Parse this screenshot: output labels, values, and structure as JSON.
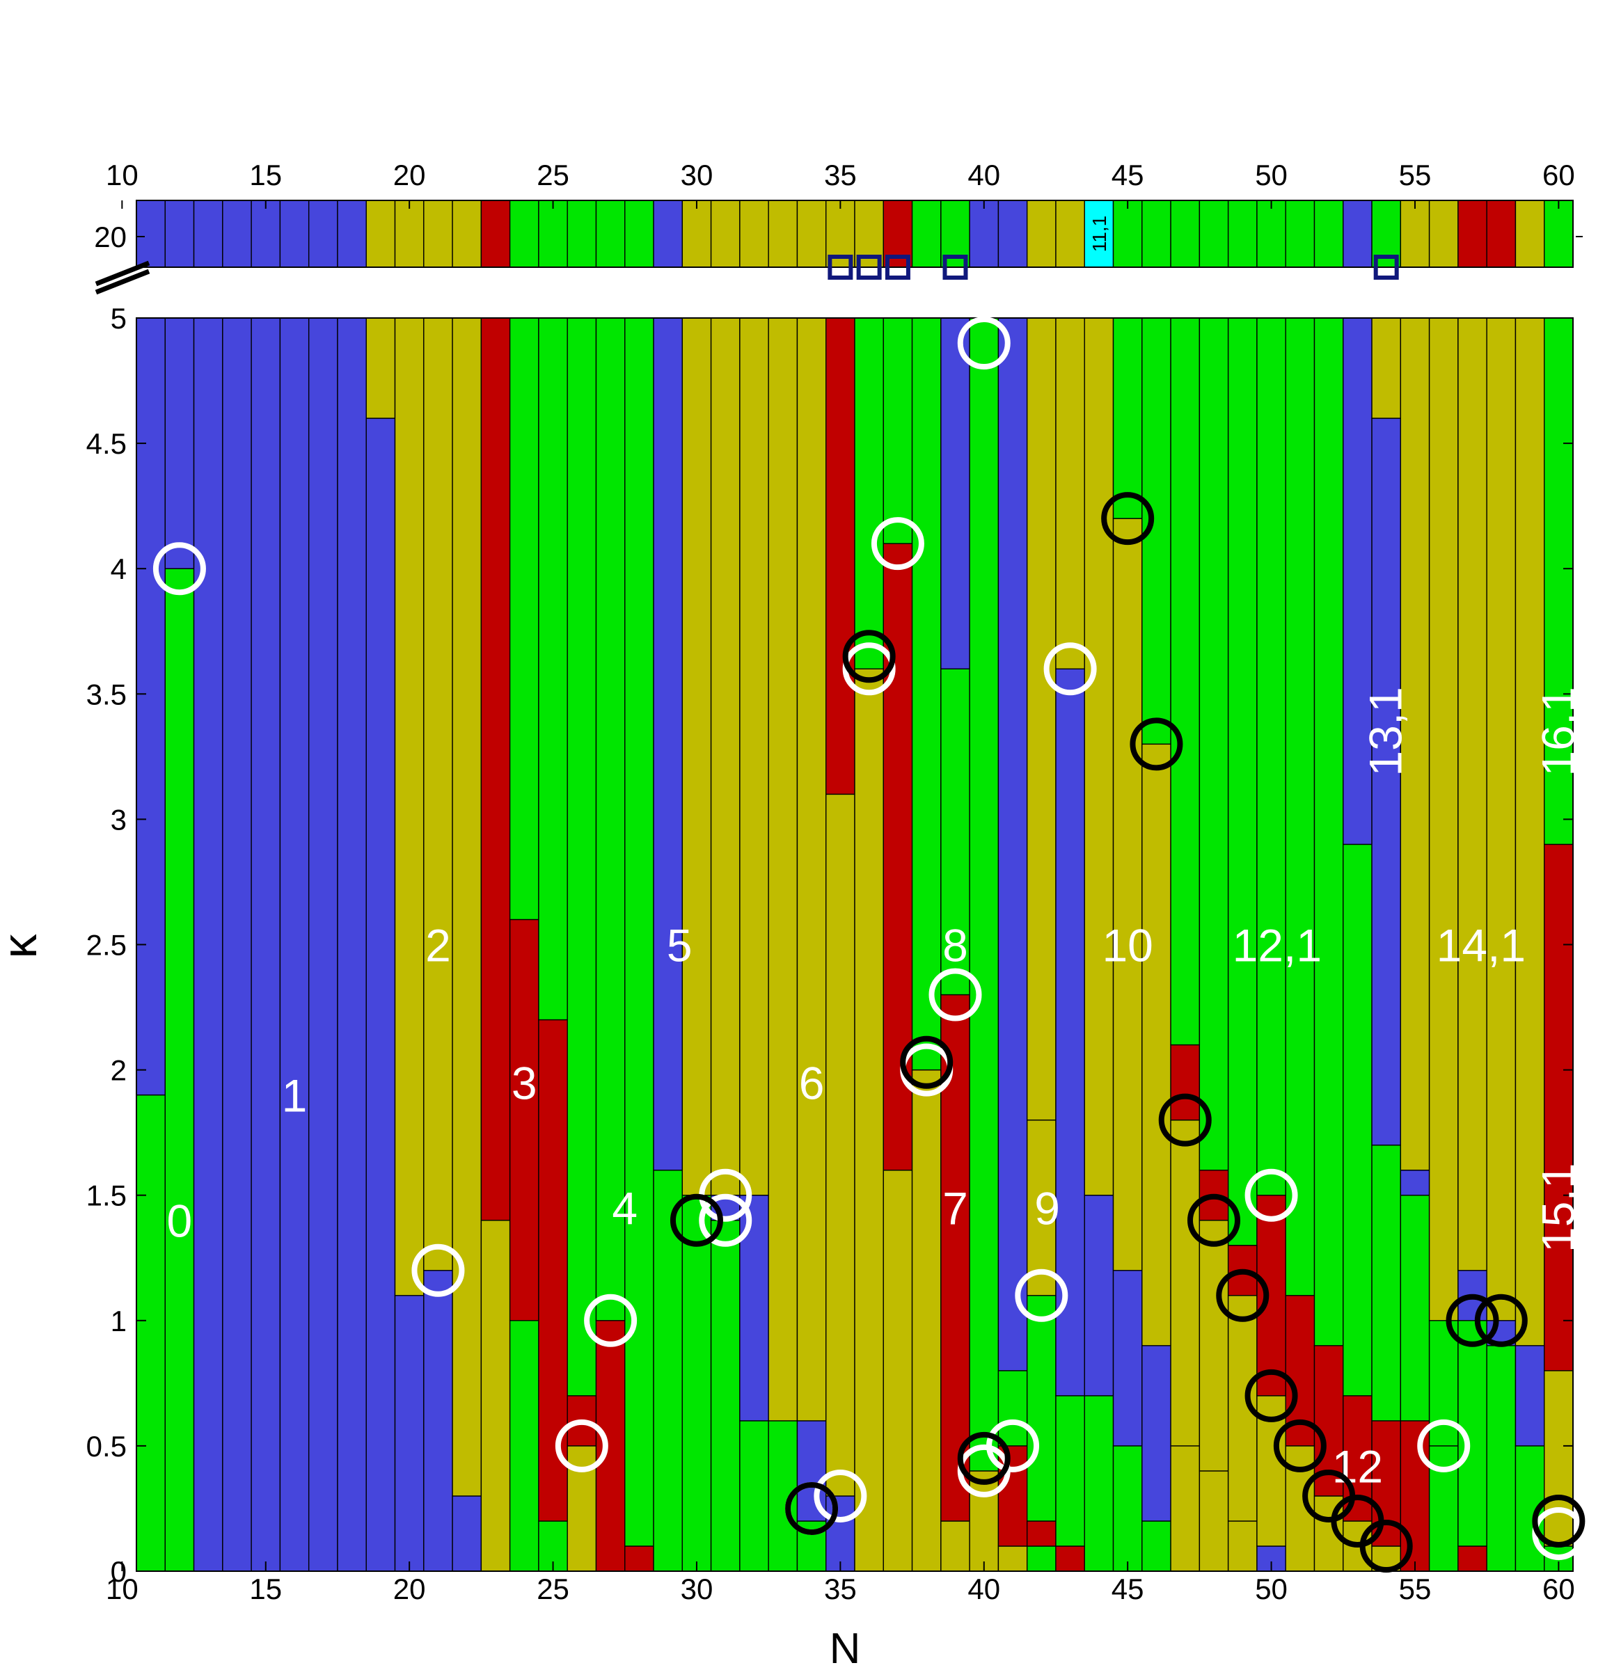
{
  "colors": {
    "blue": "#4646dc",
    "yellow": "#c0bc00",
    "red": "#c00000",
    "green": "#00e600",
    "cyan": "#00ffff",
    "square_outline": "#10187c"
  },
  "chart_data": {
    "type": "heatmap",
    "title": "",
    "xlabel": "N",
    "ylabel": "κ",
    "x_ticks": [
      "10",
      "15",
      "20",
      "25",
      "30",
      "35",
      "40",
      "45",
      "50",
      "55",
      "60"
    ],
    "y_ticks": [
      "0",
      "0.5",
      "1",
      "1.5",
      "2",
      "2.5",
      "3",
      "3.5",
      "4",
      "4.5",
      "5"
    ],
    "top_tick": "20",
    "xlim": [
      10.5,
      60.5
    ],
    "ylim": [
      0,
      5
    ],
    "columns": [
      {
        "N": 11,
        "segs": [
          [
            0,
            1.9,
            "green"
          ],
          [
            1.9,
            5,
            "blue"
          ]
        ],
        "top": "blue"
      },
      {
        "N": 12,
        "segs": [
          [
            0,
            4.0,
            "green"
          ],
          [
            4.0,
            5,
            "blue"
          ]
        ],
        "top": "blue"
      },
      {
        "N": 13,
        "segs": [
          [
            0,
            5,
            "blue"
          ]
        ],
        "top": "blue"
      },
      {
        "N": 14,
        "segs": [
          [
            0,
            5,
            "blue"
          ]
        ],
        "top": "blue"
      },
      {
        "N": 15,
        "segs": [
          [
            0,
            5,
            "blue"
          ]
        ],
        "top": "blue"
      },
      {
        "N": 16,
        "segs": [
          [
            0,
            5,
            "blue"
          ]
        ],
        "top": "blue"
      },
      {
        "N": 17,
        "segs": [
          [
            0,
            5,
            "blue"
          ]
        ],
        "top": "blue"
      },
      {
        "N": 18,
        "segs": [
          [
            0,
            5,
            "blue"
          ]
        ],
        "top": "blue"
      },
      {
        "N": 19,
        "segs": [
          [
            0,
            4.6,
            "blue"
          ],
          [
            4.6,
            5,
            "yellow"
          ]
        ],
        "top": "yellow"
      },
      {
        "N": 20,
        "segs": [
          [
            0,
            1.1,
            "blue"
          ],
          [
            1.1,
            5,
            "yellow"
          ]
        ],
        "top": "yellow"
      },
      {
        "N": 21,
        "segs": [
          [
            0,
            1.2,
            "blue"
          ],
          [
            1.2,
            5,
            "yellow"
          ]
        ],
        "top": "yellow"
      },
      {
        "N": 22,
        "segs": [
          [
            0,
            0.3,
            "blue"
          ],
          [
            0.3,
            5,
            "yellow"
          ]
        ],
        "top": "yellow"
      },
      {
        "N": 23,
        "segs": [
          [
            0,
            1.4,
            "yellow"
          ],
          [
            1.4,
            5,
            "red"
          ]
        ],
        "top": "red"
      },
      {
        "N": 24,
        "segs": [
          [
            0,
            1.0,
            "green"
          ],
          [
            1.0,
            2.6,
            "red"
          ],
          [
            2.6,
            5,
            "green"
          ]
        ],
        "top": "green"
      },
      {
        "N": 25,
        "segs": [
          [
            0,
            0.2,
            "green"
          ],
          [
            0.2,
            2.2,
            "red"
          ],
          [
            2.2,
            5,
            "green"
          ]
        ],
        "top": "green"
      },
      {
        "N": 26,
        "segs": [
          [
            0,
            0.5,
            "yellow"
          ],
          [
            0.5,
            0.7,
            "red"
          ],
          [
            0.7,
            5,
            "green"
          ]
        ],
        "top": "green"
      },
      {
        "N": 27,
        "segs": [
          [
            0,
            1.0,
            "red"
          ],
          [
            1.0,
            5,
            "green"
          ]
        ],
        "top": "green"
      },
      {
        "N": 28,
        "segs": [
          [
            0,
            0.1,
            "red"
          ],
          [
            0.1,
            5,
            "green"
          ]
        ],
        "top": "green"
      },
      {
        "N": 29,
        "segs": [
          [
            0,
            1.6,
            "green"
          ],
          [
            1.6,
            5,
            "blue"
          ]
        ],
        "top": "blue"
      },
      {
        "N": 30,
        "segs": [
          [
            0,
            1.5,
            "green"
          ],
          [
            1.5,
            5,
            "yellow"
          ]
        ],
        "top": "yellow"
      },
      {
        "N": 31,
        "segs": [
          [
            0,
            1.4,
            "green"
          ],
          [
            1.4,
            1.5,
            "blue"
          ],
          [
            1.5,
            5,
            "yellow"
          ]
        ],
        "top": "yellow"
      },
      {
        "N": 32,
        "segs": [
          [
            0,
            0.6,
            "green"
          ],
          [
            0.6,
            1.5,
            "blue"
          ],
          [
            1.5,
            5,
            "yellow"
          ]
        ],
        "top": "yellow"
      },
      {
        "N": 33,
        "segs": [
          [
            0,
            0.6,
            "green"
          ],
          [
            0.6,
            5,
            "yellow"
          ]
        ],
        "top": "yellow"
      },
      {
        "N": 34,
        "segs": [
          [
            0,
            0.2,
            "green"
          ],
          [
            0.2,
            0.6,
            "blue"
          ],
          [
            0.6,
            5,
            "yellow"
          ]
        ],
        "top": "yellow"
      },
      {
        "N": 35,
        "segs": [
          [
            0,
            0.3,
            "blue"
          ],
          [
            0.3,
            3.1,
            "yellow"
          ],
          [
            3.1,
            5,
            "red"
          ]
        ],
        "top": "yellow"
      },
      {
        "N": 36,
        "segs": [
          [
            0,
            3.6,
            "yellow"
          ],
          [
            3.6,
            5,
            "green"
          ]
        ],
        "top": "yellow"
      },
      {
        "N": 37,
        "segs": [
          [
            0,
            1.6,
            "yellow"
          ],
          [
            1.6,
            4.1,
            "red"
          ],
          [
            4.1,
            5,
            "green"
          ]
        ],
        "top": "red"
      },
      {
        "N": 38,
        "segs": [
          [
            0,
            2.0,
            "yellow"
          ],
          [
            2.0,
            5,
            "green"
          ]
        ],
        "top": "green"
      },
      {
        "N": 39,
        "segs": [
          [
            0,
            0.2,
            "yellow"
          ],
          [
            0.2,
            2.3,
            "red"
          ],
          [
            2.3,
            3.6,
            "green"
          ],
          [
            3.6,
            5,
            "blue"
          ]
        ],
        "top": "green"
      },
      {
        "N": 40,
        "segs": [
          [
            0,
            0.4,
            "yellow"
          ],
          [
            0.4,
            5,
            "green"
          ]
        ],
        "top": "blue"
      },
      {
        "N": 41,
        "segs": [
          [
            0,
            0.1,
            "yellow"
          ],
          [
            0.1,
            0.5,
            "red"
          ],
          [
            0.5,
            0.8,
            "green"
          ],
          [
            0.8,
            5,
            "blue"
          ]
        ],
        "top": "blue"
      },
      {
        "N": 42,
        "segs": [
          [
            0,
            0.1,
            "green"
          ],
          [
            0.1,
            0.2,
            "red"
          ],
          [
            0.2,
            1.1,
            "green"
          ],
          [
            1.1,
            1.8,
            "yellow"
          ],
          [
            1.8,
            5,
            "yellow"
          ]
        ],
        "top": "yellow"
      },
      {
        "N": 43,
        "segs": [
          [
            0,
            0.1,
            "red"
          ],
          [
            0.1,
            0.7,
            "green"
          ],
          [
            0.7,
            3.6,
            "blue"
          ],
          [
            3.6,
            5,
            "yellow"
          ]
        ],
        "top": "yellow"
      },
      {
        "N": 44,
        "segs": [
          [
            0,
            0.7,
            "green"
          ],
          [
            0.7,
            1.5,
            "blue"
          ],
          [
            1.5,
            5,
            "yellow"
          ]
        ],
        "top": "cyan"
      },
      {
        "N": 45,
        "segs": [
          [
            0,
            0.5,
            "green"
          ],
          [
            0.5,
            1.2,
            "blue"
          ],
          [
            1.2,
            4.2,
            "yellow"
          ],
          [
            4.2,
            5,
            "green"
          ]
        ],
        "top": "green"
      },
      {
        "N": 46,
        "segs": [
          [
            0,
            0.2,
            "green"
          ],
          [
            0.2,
            0.9,
            "blue"
          ],
          [
            0.9,
            3.3,
            "yellow"
          ],
          [
            3.3,
            5,
            "green"
          ]
        ],
        "top": "green"
      },
      {
        "N": 47,
        "segs": [
          [
            0,
            0.5,
            "yellow"
          ],
          [
            0.5,
            1.8,
            "yellow"
          ],
          [
            1.8,
            2.1,
            "red"
          ],
          [
            2.1,
            5,
            "green"
          ]
        ],
        "top": "green"
      },
      {
        "N": 48,
        "segs": [
          [
            0,
            0.4,
            "yellow"
          ],
          [
            0.4,
            1.4,
            "yellow"
          ],
          [
            1.4,
            1.6,
            "red"
          ],
          [
            1.6,
            5,
            "green"
          ]
        ],
        "top": "green"
      },
      {
        "N": 49,
        "segs": [
          [
            0,
            0.2,
            "yellow"
          ],
          [
            0.2,
            1.1,
            "yellow"
          ],
          [
            1.1,
            1.3,
            "red"
          ],
          [
            1.3,
            5,
            "green"
          ]
        ],
        "top": "green"
      },
      {
        "N": 50,
        "segs": [
          [
            0,
            0.1,
            "blue"
          ],
          [
            0.1,
            0.7,
            "yellow"
          ],
          [
            0.7,
            1.5,
            "red"
          ],
          [
            1.5,
            5,
            "green"
          ]
        ],
        "top": "green"
      },
      {
        "N": 51,
        "segs": [
          [
            0,
            0.5,
            "yellow"
          ],
          [
            0.5,
            1.1,
            "red"
          ],
          [
            1.1,
            5,
            "green"
          ]
        ],
        "top": "green"
      },
      {
        "N": 52,
        "segs": [
          [
            0,
            0.3,
            "yellow"
          ],
          [
            0.3,
            0.9,
            "red"
          ],
          [
            0.9,
            5,
            "green"
          ]
        ],
        "top": "green"
      },
      {
        "N": 53,
        "segs": [
          [
            0,
            0.2,
            "yellow"
          ],
          [
            0.2,
            0.7,
            "red"
          ],
          [
            0.7,
            2.9,
            "green"
          ],
          [
            2.9,
            5,
            "blue"
          ]
        ],
        "top": "blue"
      },
      {
        "N": 54,
        "segs": [
          [
            0,
            0.1,
            "yellow"
          ],
          [
            0.1,
            0.6,
            "red"
          ],
          [
            0.6,
            1.7,
            "green"
          ],
          [
            1.7,
            4.6,
            "blue"
          ],
          [
            4.6,
            5,
            "yellow"
          ]
        ],
        "top": "green"
      },
      {
        "N": 55,
        "segs": [
          [
            0,
            0.6,
            "red"
          ],
          [
            0.6,
            1.5,
            "green"
          ],
          [
            1.5,
            1.6,
            "blue"
          ],
          [
            1.6,
            5,
            "yellow"
          ]
        ],
        "top": "yellow"
      },
      {
        "N": 56,
        "segs": [
          [
            0,
            0.5,
            "green"
          ],
          [
            0.5,
            1.0,
            "green"
          ],
          [
            1.0,
            5,
            "yellow"
          ]
        ],
        "top": "yellow"
      },
      {
        "N": 57,
        "segs": [
          [
            0,
            0.1,
            "red"
          ],
          [
            0.1,
            1.0,
            "green"
          ],
          [
            1.0,
            1.2,
            "blue"
          ],
          [
            1.2,
            5,
            "yellow"
          ]
        ],
        "top": "red"
      },
      {
        "N": 58,
        "segs": [
          [
            0,
            0.9,
            "green"
          ],
          [
            0.9,
            1.0,
            "blue"
          ],
          [
            1.0,
            5,
            "yellow"
          ]
        ],
        "top": "red"
      },
      {
        "N": 59,
        "segs": [
          [
            0,
            0.5,
            "green"
          ],
          [
            0.5,
            0.9,
            "blue"
          ],
          [
            0.9,
            5,
            "yellow"
          ]
        ],
        "top": "yellow"
      },
      {
        "N": 60,
        "segs": [
          [
            0,
            0.1,
            "green"
          ],
          [
            0.1,
            0.8,
            "yellow"
          ],
          [
            0.8,
            2.9,
            "red"
          ],
          [
            2.9,
            5,
            "green"
          ]
        ],
        "top": "green"
      }
    ],
    "labels": [
      {
        "text": "0",
        "N": 12,
        "k": 1.4,
        "rotate": false
      },
      {
        "text": "1",
        "N": 16,
        "k": 1.9,
        "rotate": false
      },
      {
        "text": "2",
        "N": 21,
        "k": 2.5,
        "rotate": false
      },
      {
        "text": "3",
        "N": 24,
        "k": 1.95,
        "rotate": false
      },
      {
        "text": "4",
        "N": 27.5,
        "k": 1.45,
        "rotate": false
      },
      {
        "text": "5",
        "N": 29.4,
        "k": 2.5,
        "rotate": false
      },
      {
        "text": "6",
        "N": 34,
        "k": 1.95,
        "rotate": false
      },
      {
        "text": "7",
        "N": 39,
        "k": 1.45,
        "rotate": false
      },
      {
        "text": "8",
        "N": 39,
        "k": 2.5,
        "rotate": false
      },
      {
        "text": "9",
        "N": 42.2,
        "k": 1.45,
        "rotate": false
      },
      {
        "text": "10",
        "N": 45,
        "k": 2.5,
        "rotate": false
      },
      {
        "text": "12,1",
        "N": 50.2,
        "k": 2.5,
        "rotate": false
      },
      {
        "text": "12",
        "N": 53,
        "k": 0.42,
        "rotate": false
      },
      {
        "text": "14,1",
        "N": 57.3,
        "k": 2.5,
        "rotate": false
      },
      {
        "text": "13,1",
        "N": 54,
        "k": 3.35,
        "rotate": true
      },
      {
        "text": "16,1",
        "N": 60,
        "k": 3.35,
        "rotate": true
      },
      {
        "text": "15,1",
        "N": 60,
        "k": 1.45,
        "rotate": true
      }
    ],
    "top_label": {
      "text": "11,1",
      "N": 44
    },
    "white_circles": [
      [
        12,
        4.0
      ],
      [
        21,
        1.2
      ],
      [
        26,
        0.5
      ],
      [
        27,
        1.0
      ],
      [
        31,
        1.5
      ],
      [
        31,
        1.4
      ],
      [
        34,
        0.25
      ],
      [
        35,
        0.3
      ],
      [
        36,
        3.6
      ],
      [
        37,
        4.1
      ],
      [
        38,
        2.0
      ],
      [
        39,
        2.3
      ],
      [
        40,
        4.9
      ],
      [
        40,
        0.4
      ],
      [
        41,
        0.5
      ],
      [
        42,
        1.1
      ],
      [
        43,
        3.6
      ],
      [
        50,
        1.5
      ],
      [
        56,
        0.5
      ],
      [
        60,
        0.15
      ]
    ],
    "black_circles": [
      [
        30,
        1.4
      ],
      [
        34,
        0.25
      ],
      [
        36,
        3.65
      ],
      [
        38,
        2.03
      ],
      [
        40,
        0.45
      ],
      [
        45,
        4.2
      ],
      [
        46,
        3.3
      ],
      [
        47,
        1.8
      ],
      [
        48,
        1.4
      ],
      [
        49,
        1.1
      ],
      [
        50,
        0.7
      ],
      [
        51,
        0.5
      ],
      [
        52,
        0.3
      ],
      [
        53,
        0.2
      ],
      [
        54,
        0.1
      ],
      [
        57,
        1.0
      ],
      [
        58,
        1.0
      ],
      [
        60,
        0.2
      ]
    ],
    "top_squares": [
      35,
      36,
      37,
      39,
      54
    ]
  }
}
